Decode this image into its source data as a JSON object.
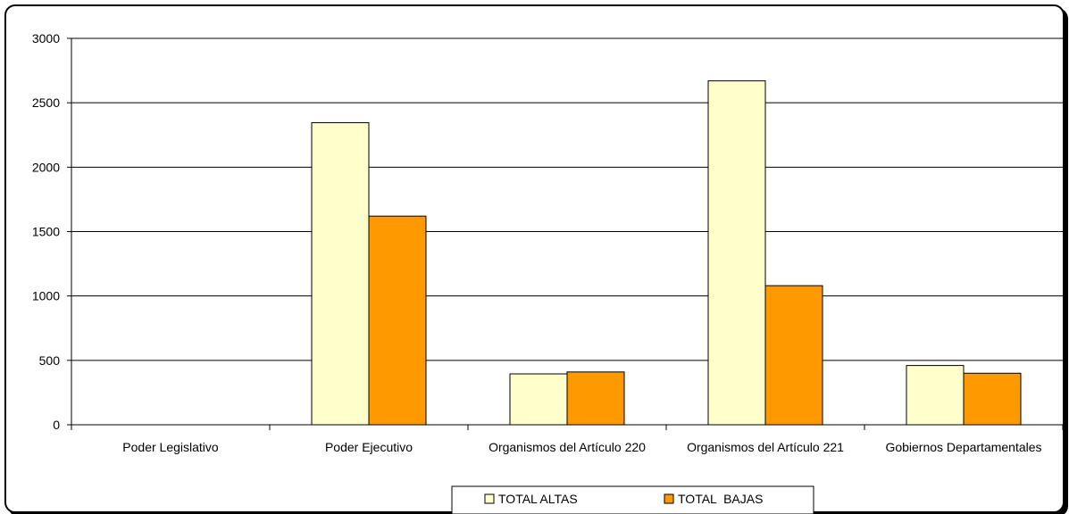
{
  "chart_data": {
    "type": "bar",
    "categories": [
      "Poder Legislativo",
      "Poder Ejecutivo",
      "Organismos del Artículo 220",
      "Organismos del Artículo 221",
      "Gobiernos Departamentales"
    ],
    "series": [
      {
        "name": "TOTAL ALTAS",
        "color": "#ffffcc",
        "values": [
          0,
          2345,
          395,
          2670,
          460
        ]
      },
      {
        "name": "TOTAL  BAJAS",
        "color": "#ff9900",
        "values": [
          0,
          1620,
          410,
          1080,
          400
        ]
      }
    ],
    "title": "",
    "xlabel": "",
    "ylabel": "",
    "ylim": [
      0,
      3000
    ],
    "yticks": [
      0,
      500,
      1000,
      1500,
      2000,
      2500,
      3000
    ],
    "grid": true,
    "legend_position": "bottom"
  }
}
